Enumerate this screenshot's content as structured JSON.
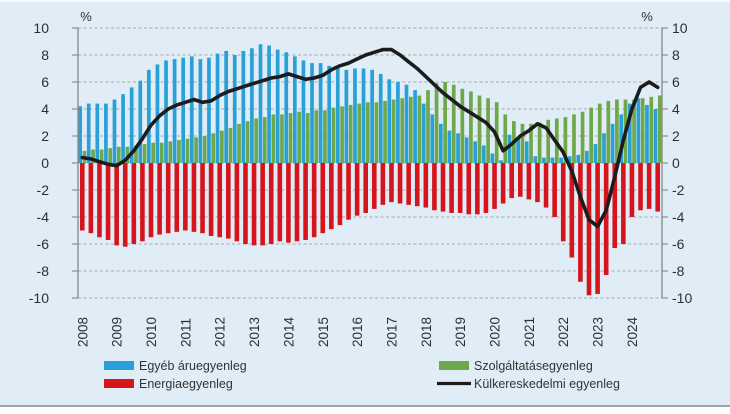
{
  "chart_data": {
    "type": "bar+line",
    "title": "",
    "frequency": "quarterly",
    "x_start": "2008 Q1",
    "x_end": "2024 Q4",
    "year_labels": [
      "2008",
      "2009",
      "2010",
      "2011",
      "2012",
      "2013",
      "2014",
      "2015",
      "2016",
      "2017",
      "2018",
      "2019",
      "2020",
      "2021",
      "2022",
      "2023",
      "2024"
    ],
    "ylim": [
      -10,
      10
    ],
    "ytick_step": 2,
    "unit_left": "%",
    "unit_right": "%",
    "grid": true,
    "legend_position": "bottom",
    "series": [
      {
        "name": "Egyéb áruegyenleg",
        "kind": "bar",
        "color": "#2aa0d8",
        "values": [
          4.2,
          4.4,
          4.4,
          4.4,
          4.7,
          5.1,
          5.6,
          6.1,
          6.9,
          7.3,
          7.6,
          7.7,
          7.8,
          7.9,
          7.7,
          7.8,
          8.1,
          8.3,
          8.0,
          8.3,
          8.5,
          8.8,
          8.7,
          8.4,
          8.2,
          7.9,
          7.6,
          7.4,
          7.4,
          7.2,
          7.2,
          6.9,
          7.0,
          7.0,
          6.9,
          6.6,
          6.2,
          6.0,
          5.8,
          5.4,
          4.4,
          3.6,
          2.9,
          2.4,
          2.2,
          1.9,
          1.6,
          1.3,
          0.7,
          0.2,
          2.1,
          1.8,
          1.6,
          0.5,
          0.4,
          0.4,
          0.4,
          0.5,
          0.6,
          0.9,
          1.4,
          2.2,
          2.9,
          3.6,
          4.4,
          4.8,
          4.3,
          4.0
        ]
      },
      {
        "name": "Szolgáltatásegyenleg",
        "kind": "bar",
        "color": "#6fa84b",
        "values": [
          0.9,
          1.0,
          1.0,
          1.1,
          1.2,
          1.2,
          1.3,
          1.4,
          1.5,
          1.5,
          1.6,
          1.7,
          1.8,
          1.9,
          2.0,
          2.2,
          2.4,
          2.6,
          2.9,
          3.1,
          3.3,
          3.4,
          3.6,
          3.6,
          3.7,
          3.8,
          3.7,
          3.9,
          3.9,
          4.1,
          4.2,
          4.3,
          4.4,
          4.5,
          4.5,
          4.6,
          4.7,
          4.8,
          4.9,
          5.0,
          5.4,
          5.9,
          6.0,
          5.8,
          5.5,
          5.3,
          5.0,
          4.8,
          4.5,
          3.6,
          3.1,
          2.9,
          2.9,
          3.0,
          3.2,
          3.3,
          3.4,
          3.6,
          3.8,
          4.1,
          4.4,
          4.6,
          4.7,
          4.7,
          4.7,
          4.8,
          4.9,
          5.0
        ]
      },
      {
        "name": "Energiaegyenleg",
        "kind": "bar",
        "color": "#d5151b",
        "values": [
          -5.0,
          -5.2,
          -5.5,
          -5.7,
          -6.1,
          -6.2,
          -6.0,
          -5.8,
          -5.5,
          -5.3,
          -5.2,
          -5.1,
          -5.0,
          -5.1,
          -5.2,
          -5.4,
          -5.5,
          -5.6,
          -5.8,
          -6.0,
          -6.1,
          -6.1,
          -6.0,
          -5.8,
          -5.9,
          -5.8,
          -5.7,
          -5.5,
          -5.2,
          -4.9,
          -4.6,
          -4.2,
          -3.9,
          -3.7,
          -3.4,
          -3.1,
          -2.9,
          -3.0,
          -3.1,
          -3.2,
          -3.3,
          -3.5,
          -3.6,
          -3.7,
          -3.7,
          -3.8,
          -3.8,
          -3.7,
          -3.4,
          -3.0,
          -2.6,
          -2.5,
          -2.7,
          -2.9,
          -3.3,
          -4.0,
          -5.8,
          -7.0,
          -8.8,
          -9.8,
          -9.7,
          -8.3,
          -6.3,
          -6.0,
          -4.0,
          -3.5,
          -3.4,
          -3.6
        ]
      },
      {
        "name": "Külkereskedelmi egyenleg",
        "kind": "line",
        "color": "#1c1c1c",
        "values": [
          0.4,
          0.3,
          0.1,
          -0.1,
          -0.2,
          0.2,
          0.9,
          1.8,
          2.8,
          3.5,
          4.0,
          4.3,
          4.5,
          4.7,
          4.5,
          4.6,
          5.0,
          5.3,
          5.5,
          5.7,
          5.9,
          6.1,
          6.3,
          6.4,
          6.6,
          6.4,
          6.2,
          6.3,
          6.5,
          6.9,
          7.2,
          7.4,
          7.7,
          8.0,
          8.2,
          8.4,
          8.4,
          8.0,
          7.5,
          7.0,
          6.4,
          5.8,
          5.2,
          4.7,
          4.2,
          3.8,
          3.4,
          3.0,
          2.3,
          0.9,
          1.4,
          2.0,
          2.4,
          2.9,
          2.6,
          1.7,
          0.8,
          -0.6,
          -2.5,
          -4.2,
          -4.7,
          -3.5,
          -1.0,
          1.7,
          4.0,
          5.6,
          6.0,
          5.6
        ]
      }
    ]
  },
  "colors": {
    "background": "#e0edf6",
    "grid": "#a7a7a7",
    "axis": "#8f8f8f",
    "text": "#2f2f2f",
    "bottom_rule": "#9fa4a8"
  }
}
